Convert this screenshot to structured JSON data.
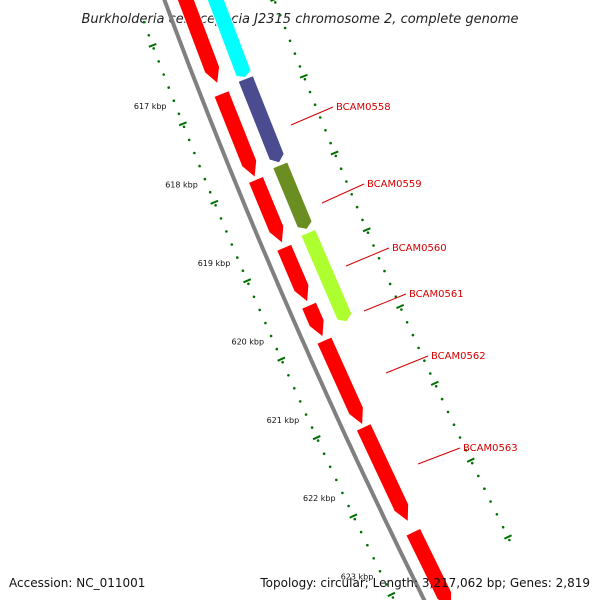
{
  "title": "Burkholderia cenocepacia J2315 chromosome 2, complete genome",
  "accession": "Accession: NC_011001",
  "summary": "Topology: circular; Length: 3,217,062 bp; Genes: 2,819",
  "ticks": [
    "617 kbp",
    "618 kbp",
    "619 kbp",
    "620 kbp",
    "621 kbp",
    "622 kbp",
    "623 kbp"
  ],
  "colors": {
    "cds": "#ff0000",
    "backbone": "#808080",
    "tick": "#007000",
    "label": "#d40000"
  },
  "features": [
    {
      "label": "",
      "color": "#ffc0c0"
    },
    {
      "label": "",
      "color": "#00ffff"
    },
    {
      "label": "BCAM0558",
      "color": "#4b4b8f"
    },
    {
      "label": "BCAM0559",
      "color": "#6b8e23"
    },
    {
      "label": "BCAM0560",
      "color": "#adff2f"
    },
    {
      "label": "BCAM0561",
      "color": ""
    },
    {
      "label": "BCAM0562",
      "color": ""
    },
    {
      "label": "BCAM0563",
      "color": ""
    }
  ]
}
